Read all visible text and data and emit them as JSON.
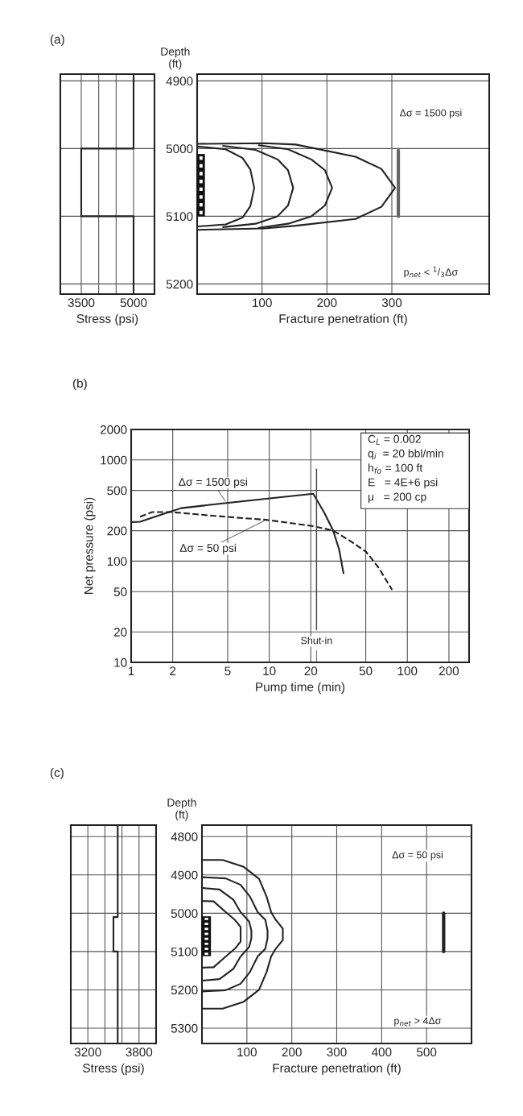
{
  "chart_data": [
    {
      "type": "line",
      "title": "(a)",
      "xlabel": "Stress (psi)",
      "xlim": [
        2900,
        5600
      ],
      "ylim": [
        5215,
        4890
      ],
      "xticks": [
        3500,
        {
          "value": 4000,
          "label": null
        },
        {
          "value": 4500,
          "label": null
        },
        5000
      ],
      "yticks": [
        4900,
        5000,
        5100,
        5200
      ],
      "grid": true,
      "tick_labels": "x",
      "series": [
        {
          "color": "#222222",
          "x": [
            5000,
            5000,
            3500,
            3500,
            5000,
            5000
          ],
          "values": [
            4890,
            5000,
            5000,
            5100,
            5100,
            5215
          ]
        }
      ]
    },
    {
      "type": "line",
      "xlabel": "Fracture penetration (ft)",
      "ylabel": "Depth\n(ft)",
      "xlim": [
        0,
        450
      ],
      "ylim": [
        5215,
        4890
      ],
      "xticks": [
        100,
        200,
        300
      ],
      "yticks": [
        4900,
        5000,
        5100,
        5200
      ],
      "grid": true,
      "annotations": [
        "Δσ = 1500 psi",
        "p$_{net}$ < $^{1}$/$_{3}$Δσ"
      ],
      "series": [
        {
          "color": "#222222",
          "x": [
            2,
            44,
            70,
            82,
            88,
            82,
            70,
            44,
            2
          ],
          "values": [
            4997,
            5001,
            5014,
            5031,
            5058,
            5085,
            5102,
            5112,
            5115
          ]
        },
        {
          "color": "#222222",
          "x": [
            40,
            90,
            124,
            140,
            148,
            140,
            124,
            90,
            40
          ],
          "values": [
            4996,
            5002,
            5016,
            5032,
            5058,
            5084,
            5100,
            5111,
            5116
          ]
        },
        {
          "color": "#222222",
          "x": [
            95,
            140,
            176,
            197,
            208,
            197,
            176,
            140,
            95
          ],
          "values": [
            4995,
            5001,
            5016,
            5032,
            5058,
            5084,
            5100,
            5111,
            5117
          ]
        },
        {
          "color": "#222222",
          "x": [
            0,
            104,
            152,
            244,
            284,
            305,
            284,
            244,
            152,
            104,
            0
          ],
          "values": [
            4993,
            4992,
            4994,
            5012,
            5030,
            5058,
            5086,
            5104,
            5114,
            5118,
            5120
          ]
        },
        {
          "color": "#666666",
          "x": [
            310,
            310
          ],
          "values": [
            5003,
            5100
          ]
        }
      ]
    },
    {
      "type": "line",
      "title": "(b)",
      "xlabel": "Pump time (min)",
      "ylabel": "Net pressure (psi)",
      "log": "xy",
      "xlim": [
        1,
        280
      ],
      "ylim": [
        10,
        2000
      ],
      "xticks": [
        1,
        2,
        5,
        10,
        20,
        50,
        100,
        200
      ],
      "yticks": [
        10,
        20,
        50,
        100,
        200,
        500,
        1000,
        2000
      ],
      "grid": true,
      "annotations": [
        "C$_{L}$ = 0.002",
        "q$_{i}$  = 20 bbl/min",
        "h$_{fo}$ = 100 ft",
        "E   = 4E+6 psi",
        "μ   = 200 cp"
      ],
      "ref_lines": [
        {
          "axis": "x",
          "value": 22,
          "label": "Shut-in",
          "color": "#444444"
        }
      ],
      "series": [
        {
          "name": "Δσ = 1500 psi",
          "color": "#222222",
          "line_style": "solid",
          "x": [
            1,
            1.16,
            1.88,
            2.3,
            4.9,
            20.8,
            24.9,
            29,
            32,
            34.5
          ],
          "values": [
            243,
            245,
            305,
            334,
            376,
            464,
            305,
            201,
            132,
            76
          ]
        },
        {
          "name": "Δσ = 50 psi",
          "color": "#222222",
          "line_style": "dashed",
          "x": [
            1.16,
            1.42,
            1.66,
            1.98,
            4.02,
            9.5,
            20.3,
            29,
            39,
            50.5,
            61.6,
            77.6
          ],
          "values": [
            275,
            305,
            305,
            305,
            280,
            256,
            223,
            201,
            157,
            123,
            87,
            52
          ]
        }
      ]
    },
    {
      "type": "line",
      "title": "(c)",
      "xlabel": "Stress (psi)",
      "xlim": [
        3000,
        4000
      ],
      "ylim": [
        5340,
        4770
      ],
      "xticks": [
        3200,
        {
          "value": 3400,
          "label": null
        },
        {
          "value": 3600,
          "label": null
        },
        3800
      ],
      "yticks": [
        4800,
        4900,
        5000,
        5100,
        5200,
        5300
      ],
      "grid": true,
      "tick_labels": "x",
      "series": [
        {
          "color": "#222222",
          "x": [
            3550,
            3550,
            3500,
            3500,
            3550,
            3550
          ],
          "values": [
            4770,
            5010,
            5010,
            5100,
            5100,
            5340
          ]
        }
      ]
    },
    {
      "type": "line",
      "xlabel": "Fracture penetration (ft)",
      "ylabel": "Depth\n(ft)",
      "xlim": [
        0,
        600
      ],
      "ylim": [
        5340,
        4770
      ],
      "xticks": [
        100,
        200,
        300,
        400,
        500
      ],
      "yticks": [
        4800,
        4900,
        5000,
        5100,
        5200,
        5300
      ],
      "grid": true,
      "annotations": [
        "Δσ = 50 psi",
        "p$_{net}$ > 4Δσ"
      ],
      "series": [
        {
          "color": "#222222",
          "x": [
            0,
            46,
            93,
            127,
            144,
            154,
            164,
            180,
            180,
            164,
            154,
            144,
            127,
            93,
            46,
            0
          ],
          "values": [
            4861,
            4861,
            4879,
            4910,
            4957,
            4997,
            5017,
            5040,
            5070,
            5093,
            5113,
            5153,
            5200,
            5231,
            5249,
            5249
          ]
        },
        {
          "color": "#222222",
          "x": [
            0,
            53,
            86,
            107,
            124,
            141,
            146,
            146,
            141,
            124,
            107,
            86,
            53,
            0
          ],
          "values": [
            4906,
            4909,
            4926,
            4957,
            4997,
            5017,
            5045,
            5065,
            5093,
            5113,
            5153,
            5184,
            5201,
            5204
          ]
        },
        {
          "color": "#222222",
          "x": [
            0,
            39,
            70,
            86,
            105,
            110,
            110,
            105,
            86,
            70,
            39,
            0
          ],
          "values": [
            4934,
            4938,
            4965,
            4997,
            5022,
            5045,
            5065,
            5088,
            5113,
            5145,
            5172,
            5176
          ]
        },
        {
          "color": "#222222",
          "x": [
            0,
            26,
            53,
            73,
            86,
            86,
            73,
            53,
            26,
            0
          ],
          "values": [
            4968,
            4969,
            4997,
            5017,
            5036,
            5074,
            5093,
            5113,
            5141,
            5142
          ]
        },
        {
          "color": "#222222",
          "x": [
            538,
            538
          ],
          "values": [
            5000,
            5100
          ]
        }
      ]
    }
  ]
}
